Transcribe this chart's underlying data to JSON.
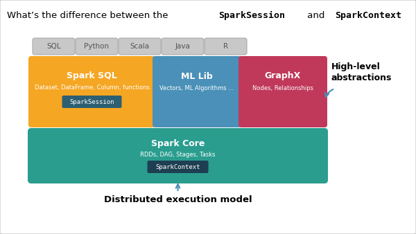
{
  "bg_color": "#ffffff",
  "border_color": "#cccccc",
  "lang_pills": [
    "SQL",
    "Python",
    "Scala",
    "Java",
    "R"
  ],
  "lang_pill_color": "#c8c8c8",
  "lang_pill_text_color": "#555555",
  "spark_sql_color": "#f5a623",
  "spark_sql_title": "Spark SQL",
  "spark_sql_subtitle": "Dataset, DataFrame, Column, functions",
  "spark_sql_badge": "SparkSession",
  "spark_sql_badge_color": "#2d5f72",
  "mllib_color": "#4a90b8",
  "mllib_title": "ML Lib",
  "mllib_subtitle": "Vectors, ML Algorithms ...",
  "graphx_color": "#c0395a",
  "graphx_title": "GraphX",
  "graphx_subtitle": "Nodes, Relationships",
  "core_color": "#2a9d8f",
  "core_title": "Spark Core",
  "core_subtitle": "RDDs, DAG, Stages, Tasks",
  "core_badge": "SparkContext",
  "core_badge_color": "#1e3f52",
  "high_level_label": "High-level\nabstractions",
  "dist_label": "Distributed execution model",
  "arrow_color": "#4a90b8",
  "white": "#ffffff",
  "title_normal1": "What’s the difference between the ",
  "title_bold1": "SparkSession",
  "title_normal2": " and ",
  "title_bold2": "SparkContext",
  "title_normal3": "?"
}
